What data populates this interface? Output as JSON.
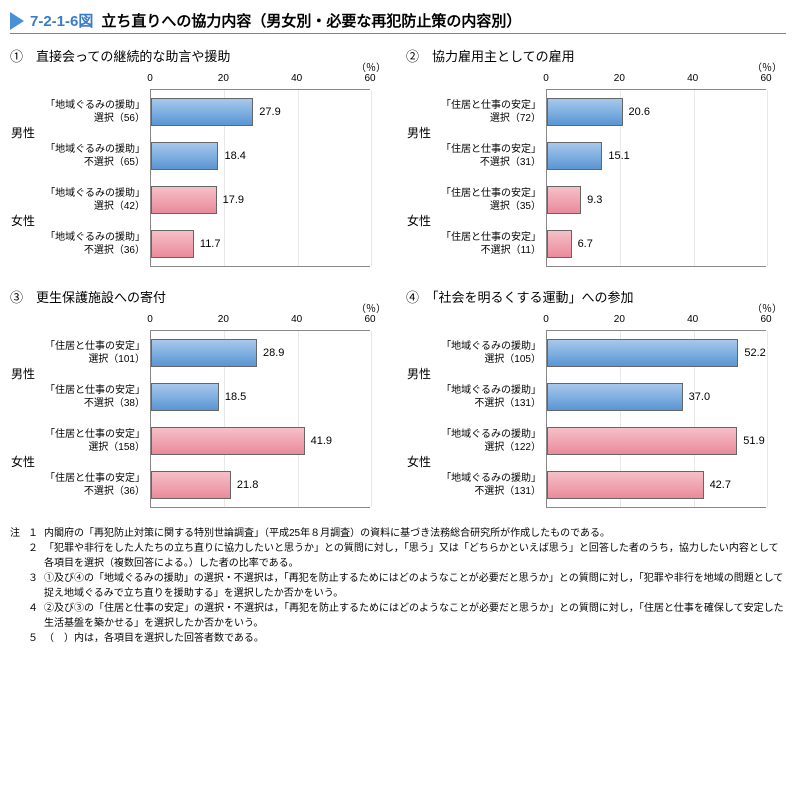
{
  "title": {
    "number": "7-2-1-6図",
    "text": "立ち直りへの協力内容（男女別・必要な再犯防止策の内容別）"
  },
  "axis": {
    "ticks": [
      0,
      20,
      40,
      60
    ],
    "max": 60,
    "unit": "（％）"
  },
  "colors": {
    "male": "#6fa8dc",
    "female": "#ed9aa8",
    "grid": "#e8e8e8",
    "border": "#888"
  },
  "charts": [
    {
      "id": "c1",
      "circled": "①",
      "title": "直接会っての継続的な助言や援助",
      "rows": [
        {
          "gender": "男性",
          "label1": "「地域ぐるみの援助」",
          "label2": "選択（56）",
          "value": 27.9,
          "cls": "bar-male"
        },
        {
          "gender": "",
          "label1": "「地域ぐるみの援助」",
          "label2": "不選択（65）",
          "value": 18.4,
          "cls": "bar-male"
        },
        {
          "gender": "女性",
          "label1": "「地域ぐるみの援助」",
          "label2": "選択（42）",
          "value": 17.9,
          "cls": "bar-female"
        },
        {
          "gender": "",
          "label1": "「地域ぐるみの援助」",
          "label2": "不選択（36）",
          "value": 11.7,
          "cls": "bar-female"
        }
      ]
    },
    {
      "id": "c2",
      "circled": "②",
      "title": "協力雇用主としての雇用",
      "rows": [
        {
          "gender": "男性",
          "label1": "「住居と仕事の安定」",
          "label2": "選択（72）",
          "value": 20.6,
          "cls": "bar-male"
        },
        {
          "gender": "",
          "label1": "「住居と仕事の安定」",
          "label2": "不選択（31）",
          "value": 15.1,
          "cls": "bar-male"
        },
        {
          "gender": "女性",
          "label1": "「住居と仕事の安定」",
          "label2": "選択（35）",
          "value": 9.3,
          "cls": "bar-female"
        },
        {
          "gender": "",
          "label1": "「住居と仕事の安定」",
          "label2": "不選択（11）",
          "value": 6.7,
          "cls": "bar-female"
        }
      ]
    },
    {
      "id": "c3",
      "circled": "③",
      "title": "更生保護施設への寄付",
      "rows": [
        {
          "gender": "男性",
          "label1": "「住居と仕事の安定」",
          "label2": "選択（101）",
          "value": 28.9,
          "cls": "bar-male"
        },
        {
          "gender": "",
          "label1": "「住居と仕事の安定」",
          "label2": "不選択（38）",
          "value": 18.5,
          "cls": "bar-male"
        },
        {
          "gender": "女性",
          "label1": "「住居と仕事の安定」",
          "label2": "選択（158）",
          "value": 41.9,
          "cls": "bar-female"
        },
        {
          "gender": "",
          "label1": "「住居と仕事の安定」",
          "label2": "不選択（36）",
          "value": 21.8,
          "cls": "bar-female"
        }
      ]
    },
    {
      "id": "c4",
      "circled": "④",
      "title": "「社会を明るくする運動」への参加",
      "rows": [
        {
          "gender": "男性",
          "label1": "「地域ぐるみの援助」",
          "label2": "選択（105）",
          "value": 52.2,
          "cls": "bar-male"
        },
        {
          "gender": "",
          "label1": "「地域ぐるみの援助」",
          "label2": "不選択（131）",
          "value": 37.0,
          "cls": "bar-male"
        },
        {
          "gender": "女性",
          "label1": "「地域ぐるみの援助」",
          "label2": "選択（122）",
          "value": 51.9,
          "cls": "bar-female"
        },
        {
          "gender": "",
          "label1": "「地域ぐるみの援助」",
          "label2": "不選択（131）",
          "value": 42.7,
          "cls": "bar-female"
        }
      ]
    }
  ],
  "notes": {
    "marker": "注",
    "items": [
      {
        "n": "１",
        "t": "内閣府の「再犯防止対策に関する特別世論調査」（平成25年８月調査）の資料に基づき法務総合研究所が作成したものである。"
      },
      {
        "n": "２",
        "t": "「犯罪や非行をした人たちの立ち直りに協力したいと思うか」との質問に対し，「思う」又は「どちらかといえば思う」と回答した者のうち，協力したい内容として各項目を選択（複数回答による。）した者の比率である。"
      },
      {
        "n": "３",
        "t": "①及び④の「地域ぐるみの援助」の選択・不選択は，「再犯を防止するためにはどのようなことが必要だと思うか」との質問に対し，「犯罪や非行を地域の問題として捉え地域ぐるみで立ち直りを援助する」を選択したか否かをいう。"
      },
      {
        "n": "４",
        "t": "②及び③の「住居と仕事の安定」の選択・不選択は，「再犯を防止するためにはどのようなことが必要だと思うか」との質問に対し，「住居と仕事を確保して安定した生活基盤を築かせる」を選択したか否かをいう。"
      },
      {
        "n": "５",
        "t": "（　）内は，各項目を選択した回答者数である。"
      }
    ]
  }
}
